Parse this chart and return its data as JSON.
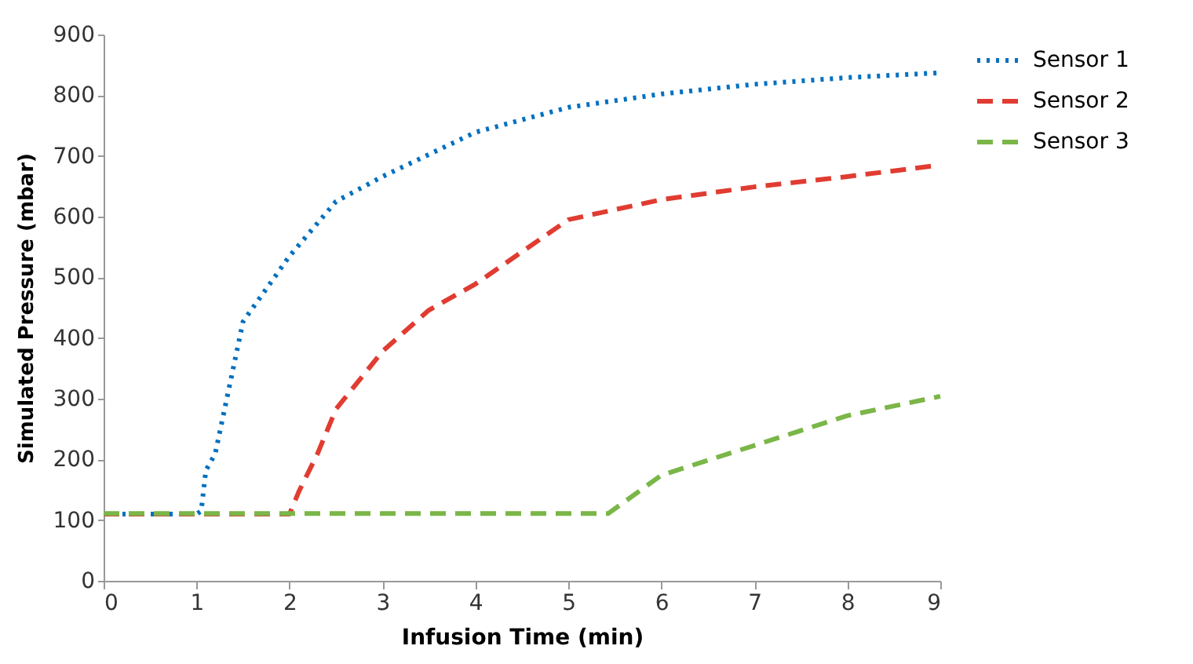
{
  "chart_data": {
    "type": "line",
    "xlabel": "Infusion Time (min)",
    "ylabel": "Simulated Pressure (mbar)",
    "xlim": [
      0,
      9
    ],
    "xticks": [
      0,
      1,
      2,
      3,
      4,
      5,
      6,
      7,
      8,
      9
    ],
    "ylim": [
      0,
      900
    ],
    "yticks": [
      0,
      100,
      200,
      300,
      400,
      500,
      600,
      700,
      800,
      900
    ],
    "grid": false,
    "legend": "right",
    "marker": "none",
    "series": [
      {
        "name": "Sensor 1",
        "color": "#0070c0",
        "line_style": "dotted",
        "x": [
          0,
          1,
          1.05,
          1.1,
          1.2,
          1.5,
          2,
          2.5,
          3,
          4,
          5,
          6,
          7,
          8,
          9
        ],
        "values": [
          110,
          110,
          115,
          182,
          209,
          427,
          535,
          625,
          666,
          739,
          780,
          802,
          818,
          829,
          837
        ]
      },
      {
        "name": "Sensor 2",
        "color": "#e03c31",
        "line_style": "dashed",
        "x": [
          0,
          2,
          2.1,
          2.3,
          2.5,
          3,
          3.5,
          4,
          5,
          6,
          7,
          8,
          9
        ],
        "values": [
          110,
          110,
          147,
          209,
          283,
          378,
          446,
          489,
          595,
          628,
          649,
          666,
          685
        ]
      },
      {
        "name": "Sensor 3",
        "color": "#7ab648",
        "line_style": "dashed",
        "x": [
          0,
          5.43,
          6,
          7,
          8,
          9
        ],
        "values": [
          111,
          111,
          174,
          223,
          272,
          304
        ]
      }
    ]
  }
}
